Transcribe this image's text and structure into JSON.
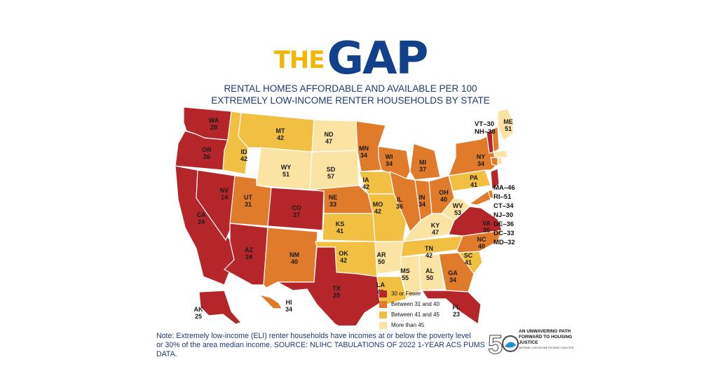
{
  "header": {
    "title_the": "THE",
    "title_gap": "GAP",
    "subtitle_line1": "RENTAL HOMES AFFORDABLE AND AVAILABLE PER 100",
    "subtitle_line2": "EXTREMELY LOW-INCOME RENTER HOUSEHOLDS BY STATE"
  },
  "colors": {
    "le30": "#b5262b",
    "b31_40": "#e07b2c",
    "b41_45": "#f1bf42",
    "gt45": "#fbe3a3"
  },
  "states": {
    "WA": "28",
    "OR": "26",
    "CA": "24",
    "NV": "14",
    "ID": "42",
    "MT": "42",
    "WY": "51",
    "UT": "31",
    "AZ": "24",
    "CO": "27",
    "NM": "40",
    "ND": "47",
    "SD": "57",
    "NE": "33",
    "KS": "41",
    "OK": "42",
    "TX": "25",
    "MN": "34",
    "IA": "42",
    "MO": "42",
    "AR": "50",
    "LA": "41",
    "WI": "34",
    "IL": "36",
    "MI": "37",
    "IN": "34",
    "OH": "40",
    "KY": "47",
    "TN": "42",
    "MS": "55",
    "AL": "50",
    "GA": "34",
    "FL": "23",
    "SC": "41",
    "NC": "40",
    "VA": "30",
    "WV": "53",
    "PA": "41",
    "NY": "34",
    "ME": "51",
    "AK": "25",
    "HI": "34"
  },
  "small_states": [
    "MA–46",
    "RI–51",
    "CT–34",
    "NJ–30",
    "DE–36",
    "DC–33",
    "MD–32"
  ],
  "ne_states": [
    "VT–30",
    "NH–38"
  ],
  "legend": {
    "items": [
      "30 or Fewer",
      "Between 31 and 40",
      "Between 41 and 45",
      "More than 45"
    ]
  },
  "note": {
    "line1": "Note: Extremely low-income (ELI) renter households have incomes at or below the poverty level",
    "line2": "or 30% of the area median income. SOURCE: NLIHC TABULATIONS OF 2022 1-YEAR ACS PUMS DATA."
  },
  "logo": {
    "number": "50",
    "text": "AN UNWAVERING PATH FORWARD TO HOUSING JUSTICE",
    "sub": "NATIONAL LOW INCOME HOUSING COALITION"
  }
}
